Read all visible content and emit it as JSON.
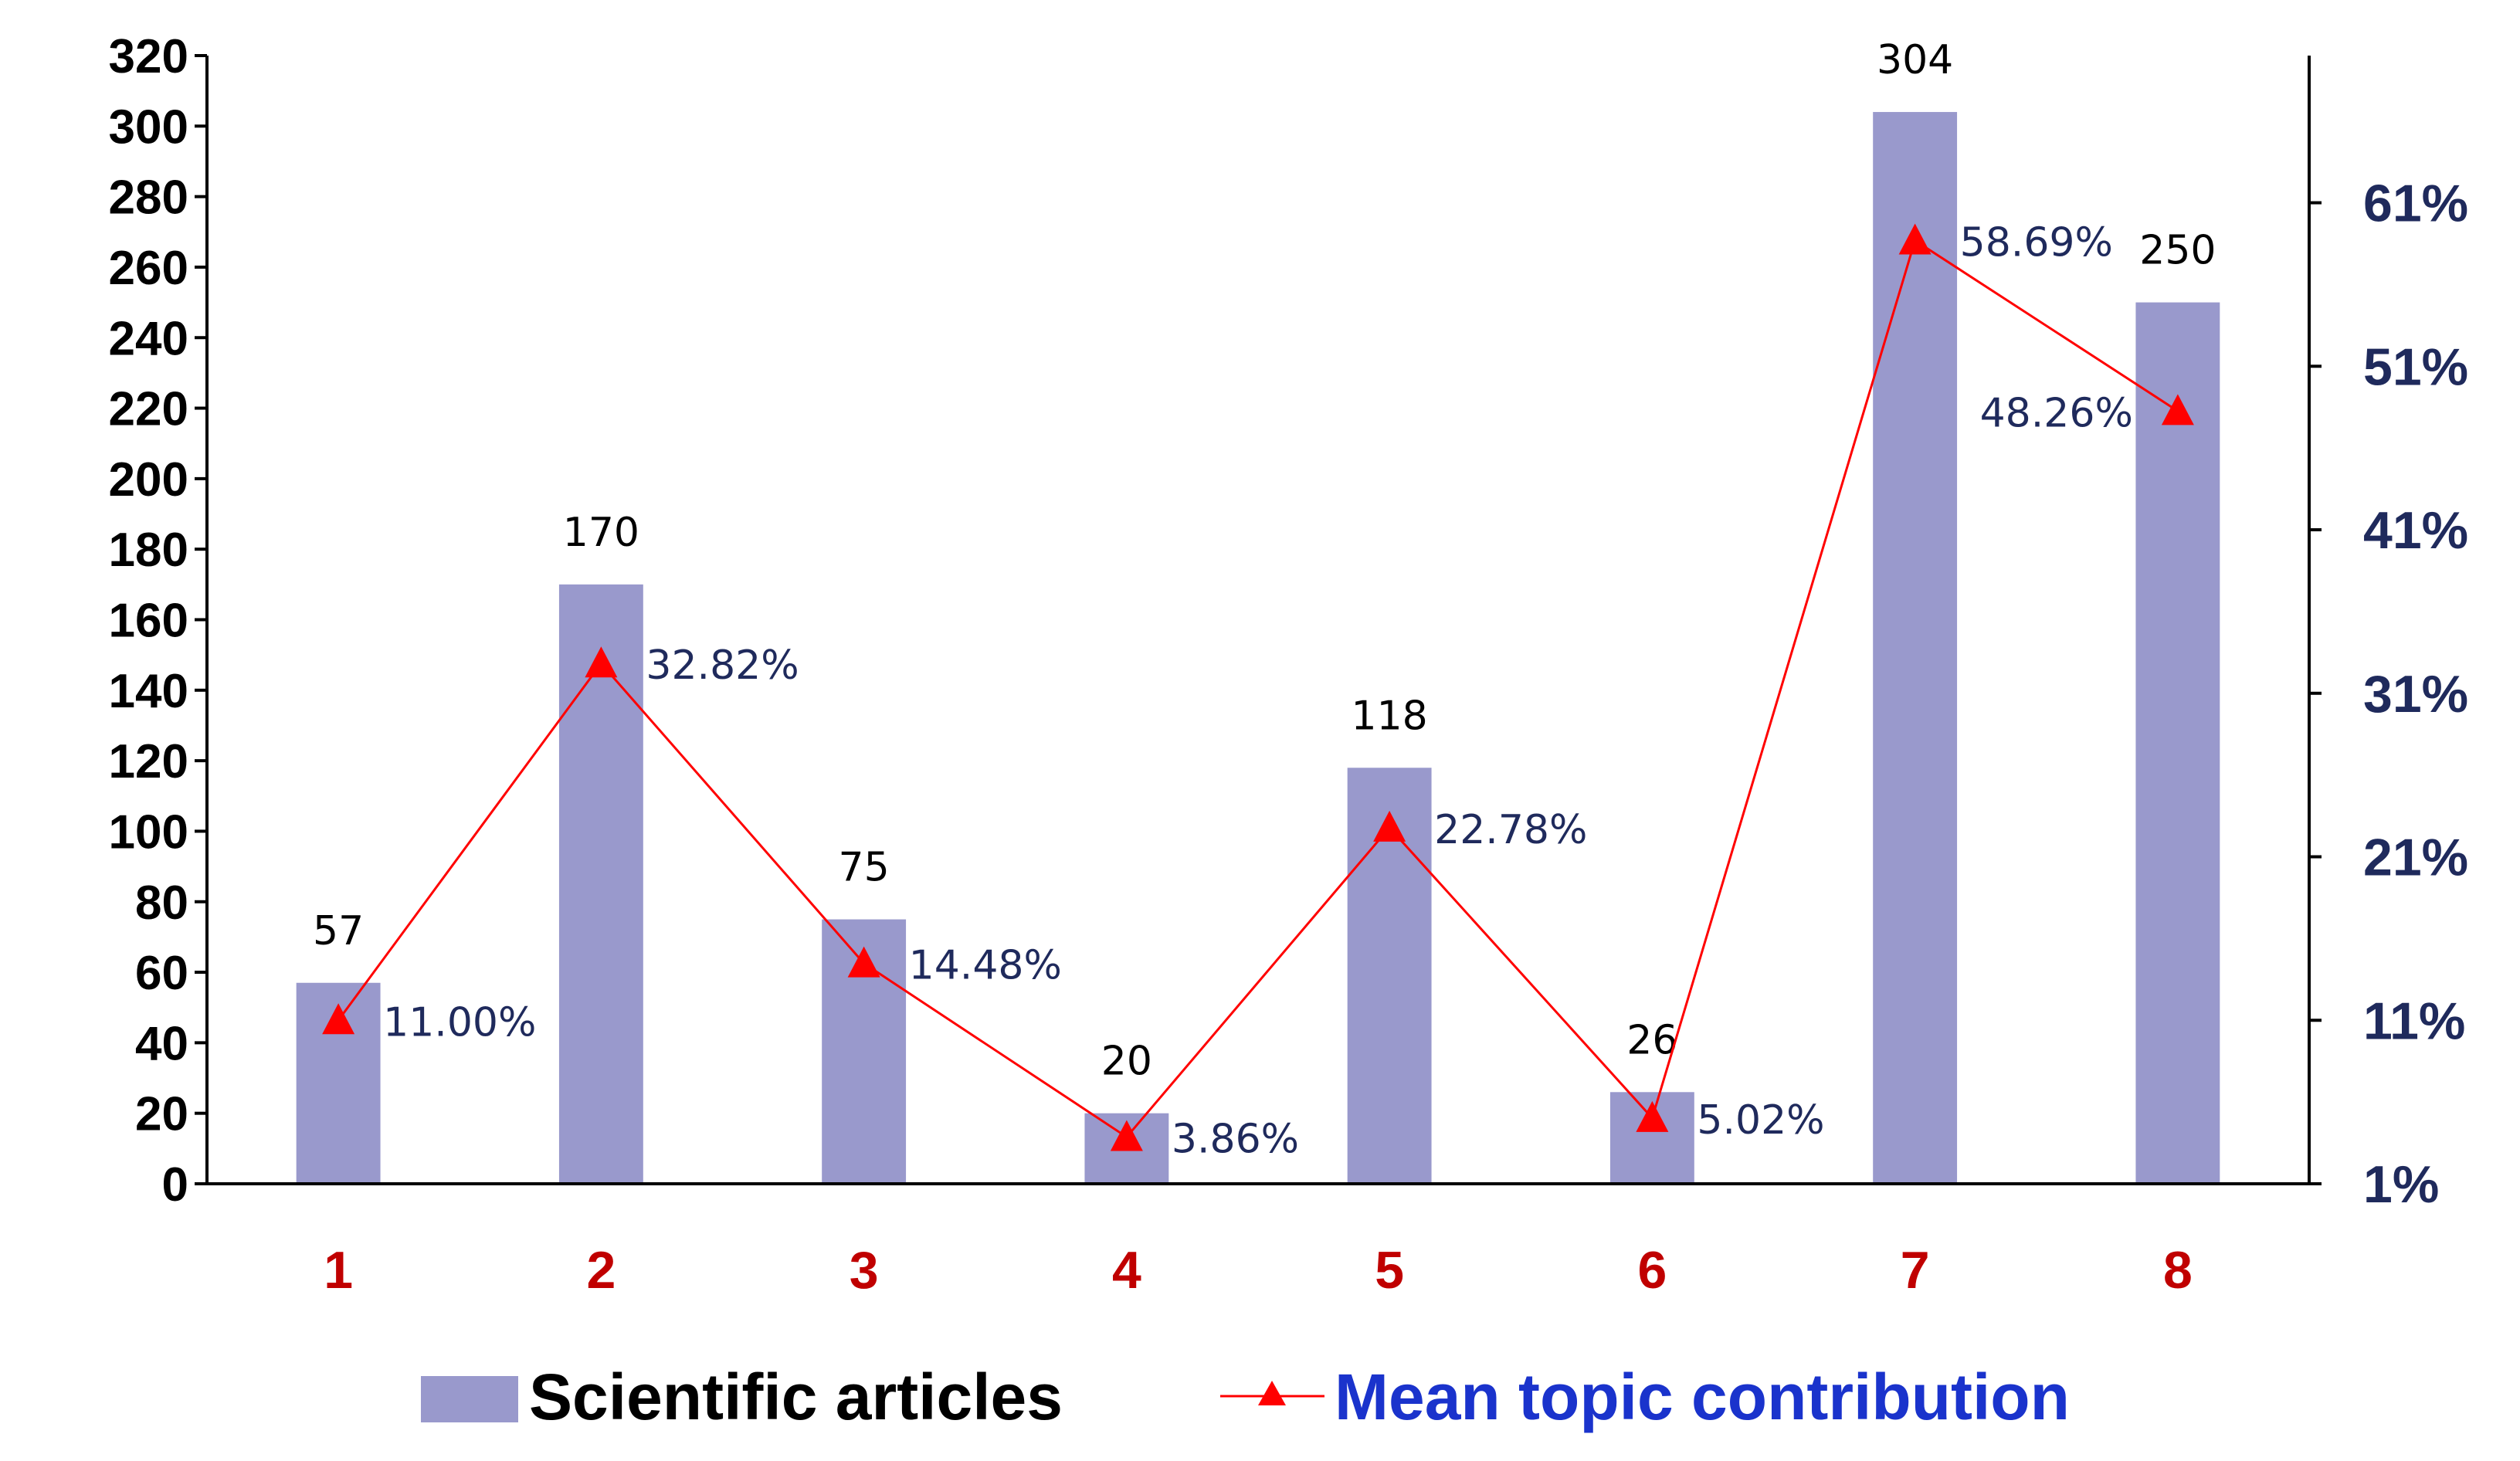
{
  "chart_data": {
    "type": "bar+line",
    "categories": [
      "1",
      "2",
      "3",
      "4",
      "5",
      "6",
      "7",
      "8"
    ],
    "series": [
      {
        "name": "Scientific articles",
        "kind": "bar",
        "axis": "left",
        "values": [
          57,
          170,
          75,
          20,
          118,
          26,
          304,
          250
        ],
        "labels": [
          "57",
          "170",
          "75",
          "20",
          "118",
          "26",
          "304",
          "250"
        ],
        "color": "#9999cc"
      },
      {
        "name": "Mean topic contribution",
        "kind": "line",
        "axis": "right",
        "marker": "triangle",
        "values": [
          11.0,
          32.82,
          14.48,
          3.86,
          22.78,
          5.02,
          58.69,
          48.26
        ],
        "labels": [
          "11.00%",
          "32.82%",
          "14.48%",
          "3.86%",
          "22.78%",
          "5.02%",
          "58.69%",
          "48.26%"
        ],
        "color": "#ff0000"
      }
    ],
    "left_axis": {
      "ylim": [
        0,
        320
      ],
      "ticks": [
        0,
        20,
        40,
        60,
        80,
        100,
        120,
        140,
        160,
        180,
        200,
        220,
        240,
        260,
        280,
        300,
        320
      ],
      "tick_labels": [
        "0",
        "20",
        "40",
        "60",
        "80",
        "100",
        "120",
        "140",
        "160",
        "180",
        "200",
        "220",
        "240",
        "260",
        "280",
        "300",
        "320"
      ]
    },
    "right_axis": {
      "ylim": [
        1,
        70
      ],
      "ticks": [
        1,
        11,
        21,
        31,
        41,
        51,
        61
      ],
      "tick_labels": [
        "1%",
        "11%",
        "21%",
        "31%",
        "41%",
        "51%",
        "61%"
      ]
    },
    "title": "",
    "xlabel": "",
    "ylabel": "",
    "legend": "bottom",
    "grid": false,
    "colors": {
      "axis": "#000000",
      "category_labels": "#c00000",
      "right_tick_labels": "#1f2a5c",
      "percent_labels": "#1f2a5c",
      "legend_line_text": "#1a33cc"
    }
  }
}
